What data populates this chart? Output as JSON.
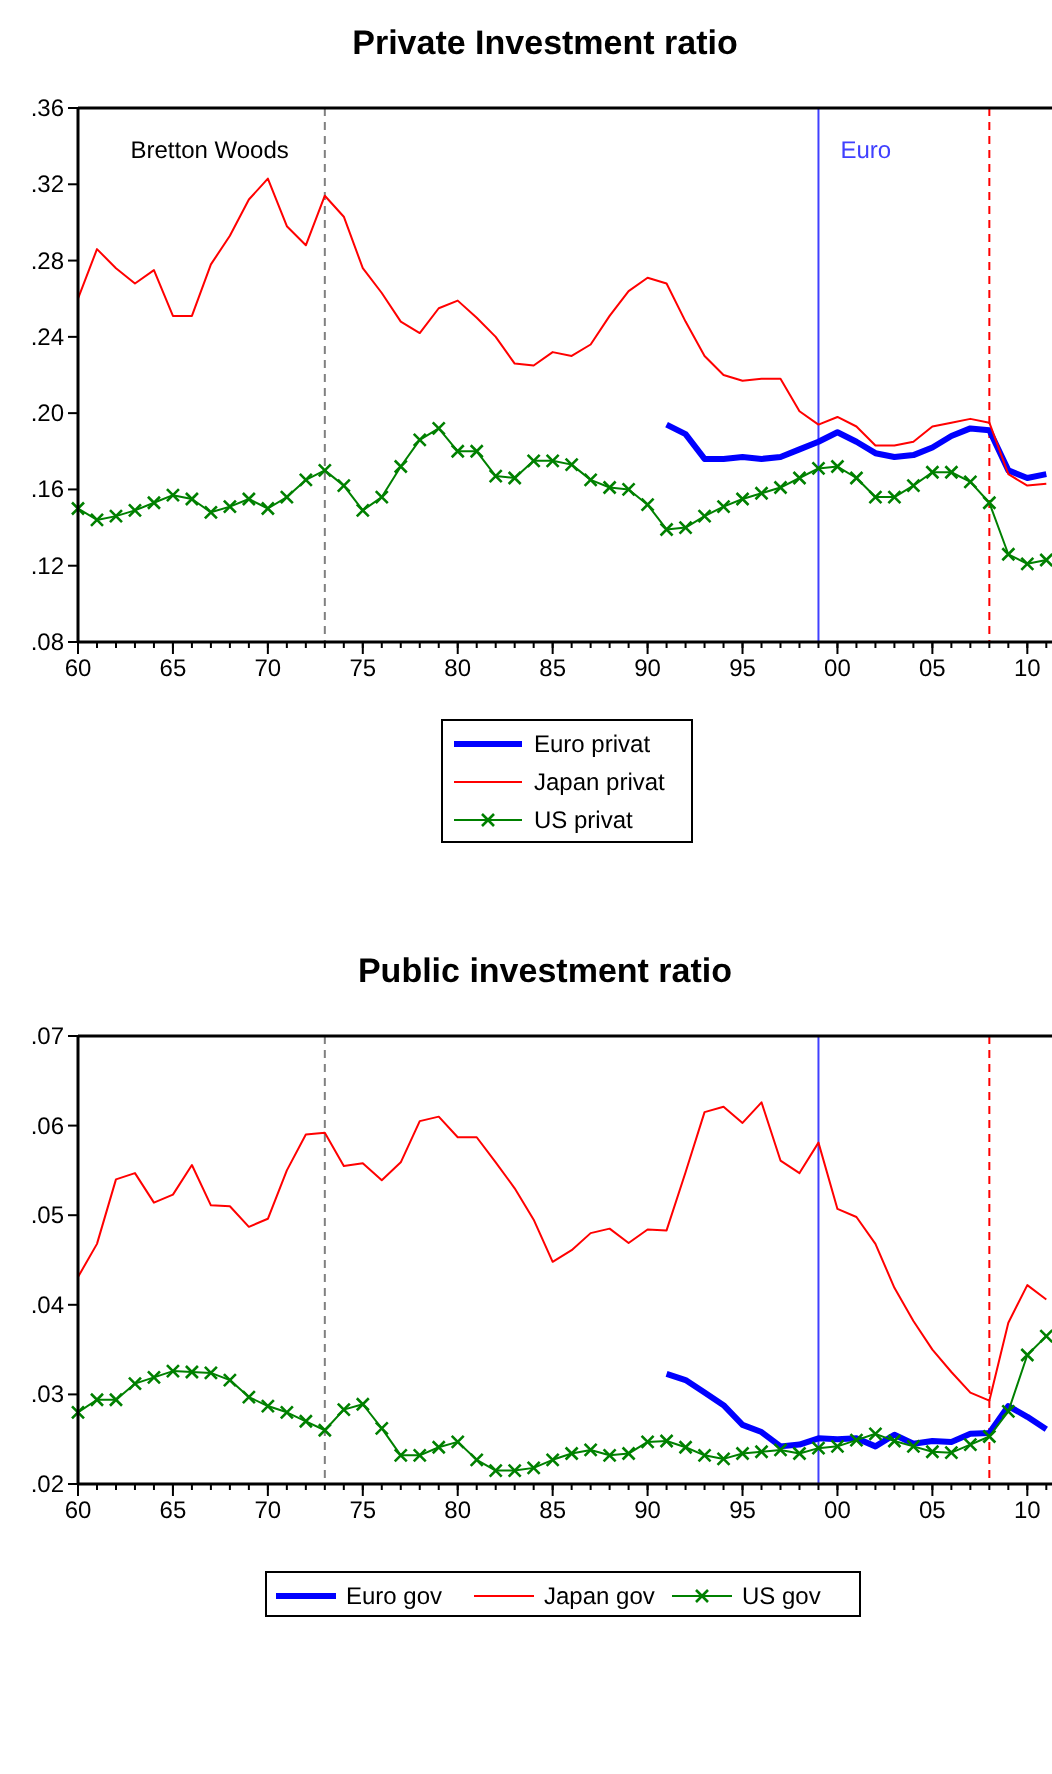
{
  "chart_data": [
    {
      "type": "line",
      "title": "Private Investment ratio",
      "x": [
        1960,
        1961,
        1962,
        1963,
        1964,
        1965,
        1966,
        1967,
        1968,
        1969,
        1970,
        1971,
        1972,
        1973,
        1974,
        1975,
        1976,
        1977,
        1978,
        1979,
        1980,
        1981,
        1982,
        1983,
        1984,
        1985,
        1986,
        1987,
        1988,
        1989,
        1990,
        1991,
        1992,
        1993,
        1994,
        1995,
        1996,
        1997,
        1998,
        1999,
        2000,
        2001,
        2002,
        2003,
        2004,
        2005,
        2006,
        2007,
        2008,
        2009,
        2010,
        2011
      ],
      "series": [
        {
          "name": "Euro privat",
          "color": "#0000ff",
          "marker": "none",
          "values": [
            null,
            null,
            null,
            null,
            null,
            null,
            null,
            null,
            null,
            null,
            null,
            null,
            null,
            null,
            null,
            null,
            null,
            null,
            null,
            null,
            null,
            null,
            null,
            null,
            null,
            null,
            null,
            null,
            null,
            null,
            null,
            0.194,
            0.189,
            0.176,
            0.176,
            0.177,
            0.176,
            0.177,
            0.181,
            0.185,
            0.19,
            0.185,
            0.179,
            0.177,
            0.178,
            0.182,
            0.188,
            0.192,
            0.191,
            0.17,
            0.166,
            0.168
          ]
        },
        {
          "name": "Japan privat",
          "color": "#ff0000",
          "marker": "none",
          "values": [
            0.26,
            0.286,
            0.276,
            0.268,
            0.275,
            0.251,
            0.251,
            0.278,
            0.293,
            0.312,
            0.323,
            0.298,
            0.288,
            0.314,
            0.303,
            0.276,
            0.263,
            0.248,
            0.242,
            0.255,
            0.259,
            0.25,
            0.24,
            0.226,
            0.225,
            0.232,
            0.23,
            0.236,
            0.251,
            0.264,
            0.271,
            0.268,
            0.248,
            0.23,
            0.22,
            0.217,
            0.218,
            0.218,
            0.201,
            0.194,
            0.198,
            0.193,
            0.183,
            0.183,
            0.185,
            0.193,
            0.195,
            0.197,
            0.195,
            0.168,
            0.162,
            0.163
          ]
        },
        {
          "name": "US privat",
          "color": "#008000",
          "marker": "cross",
          "values": [
            0.15,
            0.144,
            0.146,
            0.149,
            0.153,
            0.157,
            0.155,
            0.148,
            0.151,
            0.155,
            0.15,
            0.156,
            0.165,
            0.17,
            0.162,
            0.149,
            0.156,
            0.172,
            0.186,
            0.192,
            0.18,
            0.18,
            0.167,
            0.166,
            0.175,
            0.175,
            0.173,
            0.165,
            0.161,
            0.16,
            0.152,
            0.139,
            0.14,
            0.146,
            0.151,
            0.155,
            0.158,
            0.161,
            0.166,
            0.171,
            0.172,
            0.166,
            0.156,
            0.156,
            0.162,
            0.169,
            0.169,
            0.164,
            0.153,
            0.126,
            0.121,
            0.123
          ]
        }
      ],
      "xlim": [
        1960,
        2011.3
      ],
      "xticks": [
        {
          "value": 1960,
          "label": "60"
        },
        {
          "value": 1965,
          "label": "65"
        },
        {
          "value": 1970,
          "label": "70"
        },
        {
          "value": 1975,
          "label": "75"
        },
        {
          "value": 1980,
          "label": "80"
        },
        {
          "value": 1985,
          "label": "85"
        },
        {
          "value": 1990,
          "label": "90"
        },
        {
          "value": 1995,
          "label": "95"
        },
        {
          "value": 2000,
          "label": "00"
        },
        {
          "value": 2005,
          "label": "05"
        },
        {
          "value": 2010,
          "label": "10"
        }
      ],
      "ylim": [
        0.08,
        0.36
      ],
      "yticks": [
        {
          "value": 0.08,
          "label": ".08"
        },
        {
          "value": 0.12,
          "label": ".12"
        },
        {
          "value": 0.16,
          "label": ".16"
        },
        {
          "value": 0.2,
          "label": ".20"
        },
        {
          "value": 0.24,
          "label": ".24"
        },
        {
          "value": 0.28,
          "label": ".28"
        },
        {
          "value": 0.32,
          "label": ".32"
        },
        {
          "value": 0.36,
          "label": ".36"
        }
      ],
      "ref_lines": [
        {
          "axis": "x",
          "value": 1973,
          "label": "Bretton Woods",
          "color": "#808080",
          "line_style": "dashed"
        },
        {
          "axis": "x",
          "value": 1999,
          "label": "Euro",
          "color": "#4040ff",
          "line_style": "solid"
        },
        {
          "axis": "x",
          "value": 2008,
          "color": "#ff0000",
          "line_style": "dashed"
        }
      ],
      "grid": false,
      "legend": "bottom"
    },
    {
      "type": "line",
      "title": "Public investment ratio",
      "x": [
        1960,
        1961,
        1962,
        1963,
        1964,
        1965,
        1966,
        1967,
        1968,
        1969,
        1970,
        1971,
        1972,
        1973,
        1974,
        1975,
        1976,
        1977,
        1978,
        1979,
        1980,
        1981,
        1982,
        1983,
        1984,
        1985,
        1986,
        1987,
        1988,
        1989,
        1990,
        1991,
        1992,
        1993,
        1994,
        1995,
        1996,
        1997,
        1998,
        1999,
        2000,
        2001,
        2002,
        2003,
        2004,
        2005,
        2006,
        2007,
        2008,
        2009,
        2010,
        2011
      ],
      "series": [
        {
          "name": "Euro gov",
          "color": "#0000ff",
          "marker": "none",
          "values": [
            null,
            null,
            null,
            null,
            null,
            null,
            null,
            null,
            null,
            null,
            null,
            null,
            null,
            null,
            null,
            null,
            null,
            null,
            null,
            null,
            null,
            null,
            null,
            null,
            null,
            null,
            null,
            null,
            null,
            null,
            null,
            0.0323,
            0.0316,
            0.0302,
            0.0288,
            0.0266,
            0.0258,
            0.0242,
            0.0244,
            0.0251,
            0.025,
            0.0251,
            0.0242,
            0.0255,
            0.0245,
            0.0248,
            0.0247,
            0.0256,
            0.0257,
            0.0287,
            0.0275,
            0.0261
          ]
        },
        {
          "name": "Japan gov",
          "color": "#ff0000",
          "marker": "none",
          "values": [
            0.0431,
            0.0468,
            0.054,
            0.0547,
            0.0514,
            0.0523,
            0.0556,
            0.0511,
            0.051,
            0.0487,
            0.0496,
            0.055,
            0.059,
            0.0592,
            0.0555,
            0.0558,
            0.0539,
            0.0559,
            0.0605,
            0.061,
            0.0587,
            0.0587,
            0.0559,
            0.053,
            0.0495,
            0.0448,
            0.0461,
            0.048,
            0.0485,
            0.0469,
            0.0484,
            0.0483,
            0.0548,
            0.0615,
            0.0621,
            0.0603,
            0.0626,
            0.0561,
            0.0547,
            0.0581,
            0.0507,
            0.0498,
            0.0468,
            0.0419,
            0.0382,
            0.035,
            0.0325,
            0.0302,
            0.0293,
            0.038,
            0.0422,
            0.0406
          ]
        },
        {
          "name": "US gov",
          "color": "#008000",
          "marker": "cross",
          "values": [
            0.028,
            0.0294,
            0.0294,
            0.0312,
            0.0319,
            0.0326,
            0.0325,
            0.0324,
            0.0316,
            0.0297,
            0.0287,
            0.028,
            0.027,
            0.026,
            0.0283,
            0.0289,
            0.0262,
            0.0232,
            0.0232,
            0.0241,
            0.0247,
            0.0227,
            0.0215,
            0.0215,
            0.0218,
            0.0227,
            0.0234,
            0.0238,
            0.0232,
            0.0234,
            0.0247,
            0.0248,
            0.0241,
            0.0232,
            0.0228,
            0.0234,
            0.0236,
            0.0238,
            0.0234,
            0.024,
            0.0242,
            0.0249,
            0.0256,
            0.0248,
            0.0242,
            0.0236,
            0.0235,
            0.0244,
            0.0253,
            0.0281,
            0.0344,
            0.0365
          ]
        }
      ],
      "xlim": [
        1960,
        2011.3
      ],
      "xticks": [
        {
          "value": 1960,
          "label": "60"
        },
        {
          "value": 1965,
          "label": "65"
        },
        {
          "value": 1970,
          "label": "70"
        },
        {
          "value": 1975,
          "label": "75"
        },
        {
          "value": 1980,
          "label": "80"
        },
        {
          "value": 1985,
          "label": "85"
        },
        {
          "value": 1990,
          "label": "90"
        },
        {
          "value": 1995,
          "label": "95"
        },
        {
          "value": 2000,
          "label": "00"
        },
        {
          "value": 2005,
          "label": "05"
        },
        {
          "value": 2010,
          "label": "10"
        }
      ],
      "ylim": [
        0.02,
        0.07
      ],
      "yticks": [
        {
          "value": 0.02,
          "label": ".02"
        },
        {
          "value": 0.03,
          "label": ".03"
        },
        {
          "value": 0.04,
          "label": ".04"
        },
        {
          "value": 0.05,
          "label": ".05"
        },
        {
          "value": 0.06,
          "label": ".06"
        },
        {
          "value": 0.07,
          "label": ".07"
        }
      ],
      "ref_lines": [
        {
          "axis": "x",
          "value": 1973,
          "color": "#808080",
          "line_style": "dashed"
        },
        {
          "axis": "x",
          "value": 1999,
          "color": "#4040ff",
          "line_style": "solid"
        },
        {
          "axis": "x",
          "value": 2008,
          "color": "#ff0000",
          "line_style": "dashed"
        }
      ],
      "grid": false,
      "legend": "bottom"
    }
  ]
}
